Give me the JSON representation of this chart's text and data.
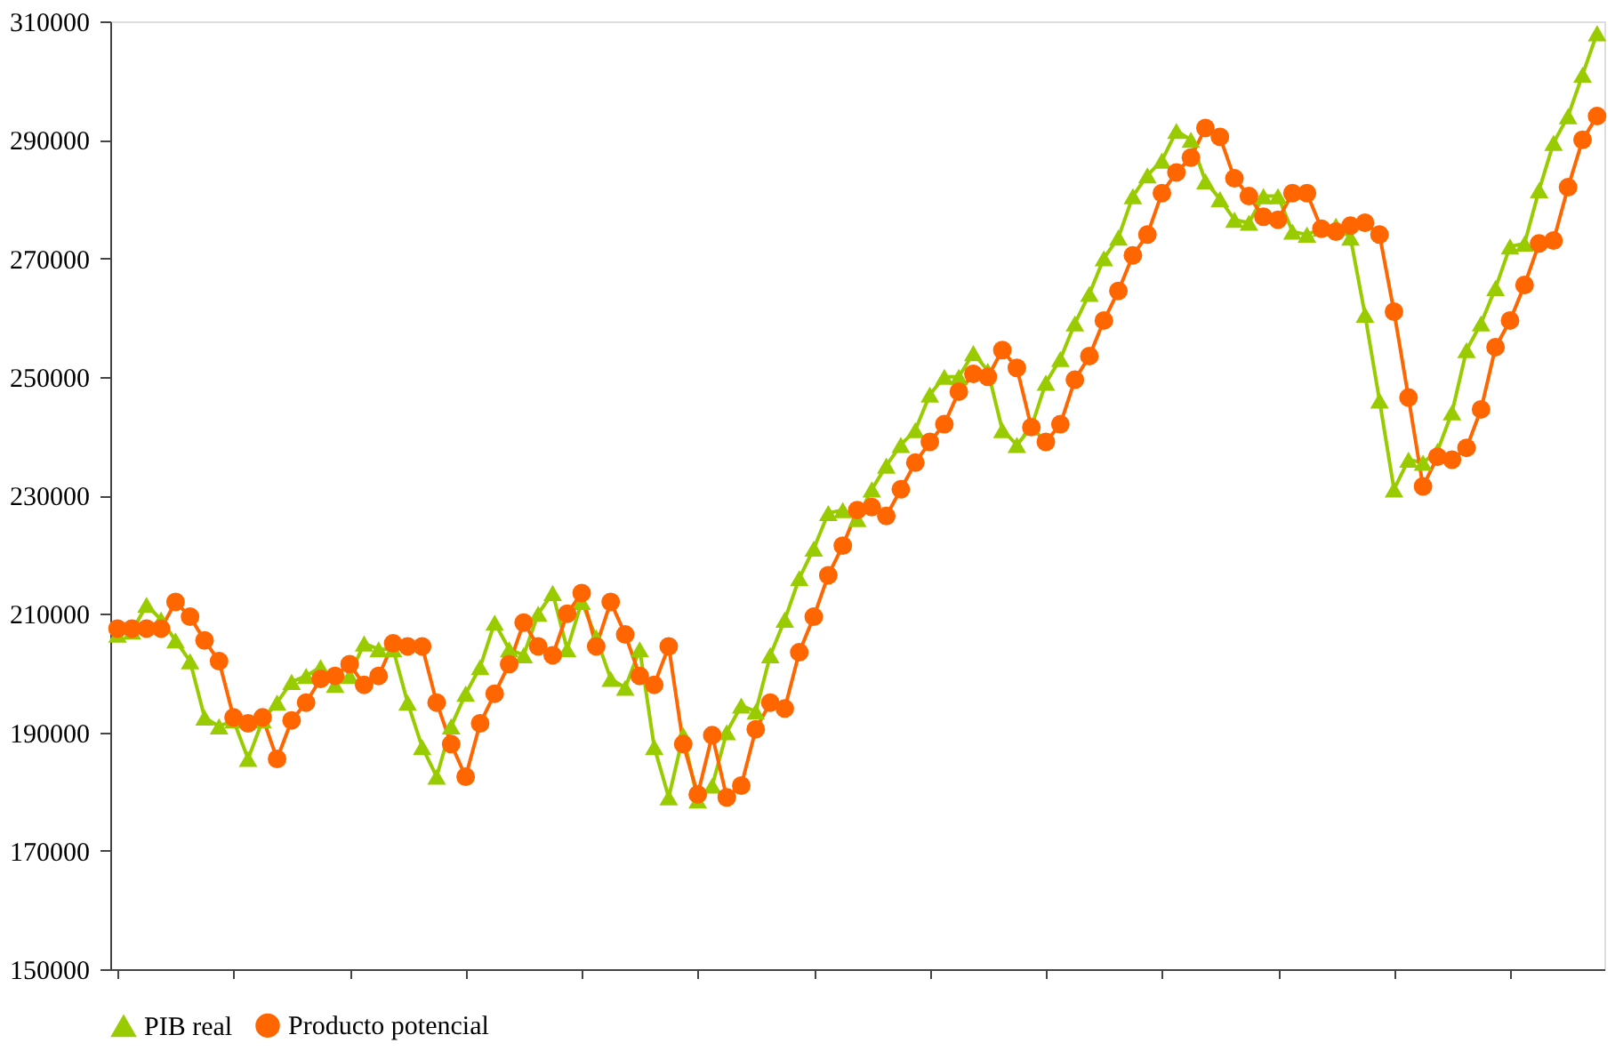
{
  "chart_data": {
    "type": "line",
    "categories": [
      null,
      null,
      null,
      null,
      null,
      null,
      null,
      null,
      null,
      null,
      null,
      null,
      null,
      null,
      null,
      null,
      null,
      null,
      null,
      null,
      null,
      null,
      null,
      null,
      null,
      null,
      null,
      null,
      null,
      null,
      null,
      null,
      null,
      null,
      null,
      null,
      null,
      null,
      null,
      null,
      null,
      null,
      null,
      null,
      null,
      null,
      null,
      null,
      null,
      null,
      null,
      null,
      null,
      null,
      null,
      null,
      null,
      null,
      null,
      null,
      null,
      null,
      null,
      null,
      null,
      null,
      null,
      null,
      null,
      null,
      null,
      null,
      null,
      null,
      null,
      null,
      null,
      null,
      null,
      null,
      null,
      null,
      null,
      null,
      null,
      null,
      null,
      null,
      null,
      null,
      null,
      null,
      null,
      null,
      null,
      null,
      null,
      null,
      null,
      null,
      null,
      null,
      null
    ],
    "series": [
      {
        "name": "PIB real",
        "color": "#99cc00",
        "marker": "triangle",
        "values": [
          206500,
          207000,
          211500,
          209000,
          205500,
          202000,
          192500,
          191000,
          192000,
          185500,
          192000,
          195000,
          198500,
          199500,
          201000,
          198000,
          199500,
          205000,
          204000,
          204000,
          195000,
          187500,
          182500,
          191000,
          196500,
          201000,
          208500,
          204000,
          203000,
          210000,
          213500,
          204000,
          212000,
          206000,
          199000,
          197500,
          204000,
          187500,
          179000,
          189500,
          178500,
          181000,
          190000,
          194500,
          193500,
          203000,
          209000,
          216000,
          221000,
          227000,
          227500,
          226000,
          231000,
          235000,
          238500,
          241000,
          247000,
          250000,
          250000,
          254000,
          251000,
          241000,
          238500,
          241500,
          249000,
          253000,
          259000,
          264000,
          270000,
          273500,
          280500,
          284000,
          286500,
          291500,
          290000,
          283000,
          280000,
          276500,
          276000,
          280500,
          280500,
          274500,
          274000,
          275000,
          275500,
          273500,
          260500,
          246000,
          231000,
          236000,
          235500,
          237500,
          244000,
          254500,
          259000,
          265000,
          272000,
          272500,
          281500,
          289500,
          294000,
          301000,
          308000
        ]
      },
      {
        "name": "Producto potencial",
        "color": "#ff6600",
        "marker": "circle",
        "values": [
          207500,
          207500,
          207500,
          207500,
          212000,
          209500,
          205500,
          202000,
          192500,
          191500,
          192500,
          185500,
          192000,
          195000,
          199000,
          199500,
          201500,
          198000,
          199500,
          205000,
          204500,
          204500,
          195000,
          188000,
          182500,
          191500,
          196500,
          201500,
          208500,
          204500,
          203000,
          210000,
          213500,
          204500,
          212000,
          206500,
          199500,
          198000,
          204500,
          188000,
          179500,
          189500,
          179000,
          181000,
          190500,
          195000,
          194000,
          203500,
          209500,
          216500,
          221500,
          227500,
          228000,
          226500,
          231000,
          235500,
          239000,
          242000,
          247500,
          250500,
          250000,
          254500,
          251500,
          241500,
          239000,
          242000,
          249500,
          253500,
          259500,
          264500,
          270500,
          274000,
          281000,
          284500,
          287000,
          292000,
          290500,
          283500,
          280500,
          277000,
          276500,
          281000,
          281000,
          275000,
          274500,
          275500,
          276000,
          274000,
          261000,
          246500,
          231500,
          236500,
          236000,
          238000,
          244500,
          255000,
          259500,
          265500,
          272500,
          273000,
          282000,
          290000,
          294000
        ]
      }
    ],
    "ylim": [
      150000,
      310000
    ],
    "yticks": [
      150000,
      170000,
      190000,
      210000,
      230000,
      250000,
      270000,
      290000,
      310000
    ],
    "grid": false,
    "legend": "bottom",
    "tick_labels": "y",
    "line_style": "solid"
  }
}
